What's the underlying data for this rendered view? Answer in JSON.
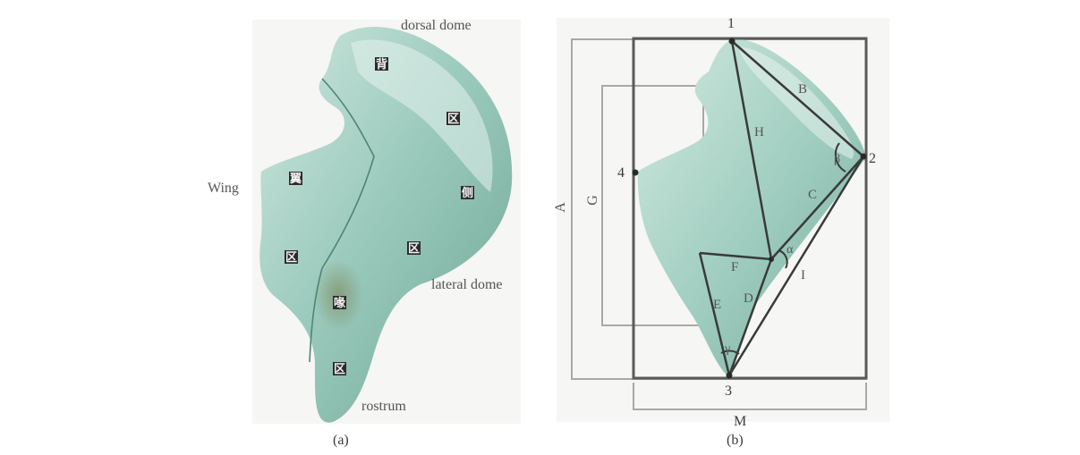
{
  "panel_a": {
    "caption": "(a)",
    "labels": {
      "dorsal_dome": "dorsal dome",
      "wing": "Wing",
      "lateral_dome": "lateral dome",
      "rostrum": "rostrum"
    },
    "region_marks": [
      "背",
      "区",
      "翼",
      "侧",
      "区",
      "区",
      "喙",
      "区"
    ]
  },
  "panel_b": {
    "caption": "(b)",
    "points": [
      "1",
      "2",
      "3",
      "4"
    ],
    "lines": [
      "B",
      "H",
      "C",
      "I",
      "F",
      "E",
      "D"
    ],
    "angles": [
      "β",
      "α",
      "γ"
    ],
    "dims": [
      "A",
      "G",
      "M"
    ]
  },
  "colors": {
    "body_light": "#bcdcd2",
    "body_mid": "#8cc0b0",
    "body_dark": "#5f9a8a",
    "frame": "#5a5a5a",
    "inner_frame": "#a8a8a8",
    "line": "#3a3a3a"
  }
}
